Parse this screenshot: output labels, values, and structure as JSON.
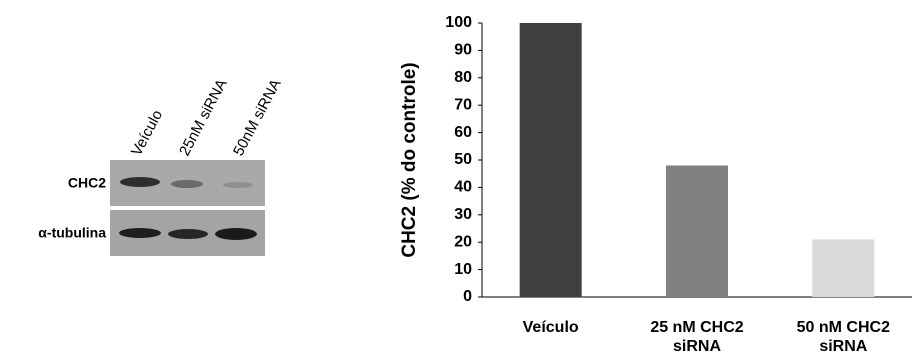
{
  "chart_data": {
    "type": "bar",
    "ylabel": "CHC2 (% do controle)",
    "categories": [
      "Veículo",
      "25 nM CHC2 siRNA",
      "50 nM CHC2 siRNA"
    ],
    "values": [
      100,
      48,
      21
    ],
    "colors": [
      "#404040",
      "#808080",
      "#d9d9d9"
    ],
    "ylim": [
      0,
      100
    ],
    "yticks": [
      0,
      10,
      20,
      30,
      40,
      50,
      60,
      70,
      80,
      90,
      100
    ]
  },
  "blot": {
    "lanes": [
      "Veículo",
      "25nM siRNA",
      "50nM siRNA"
    ],
    "rows": [
      "CHC2",
      "α-tubulina"
    ]
  }
}
